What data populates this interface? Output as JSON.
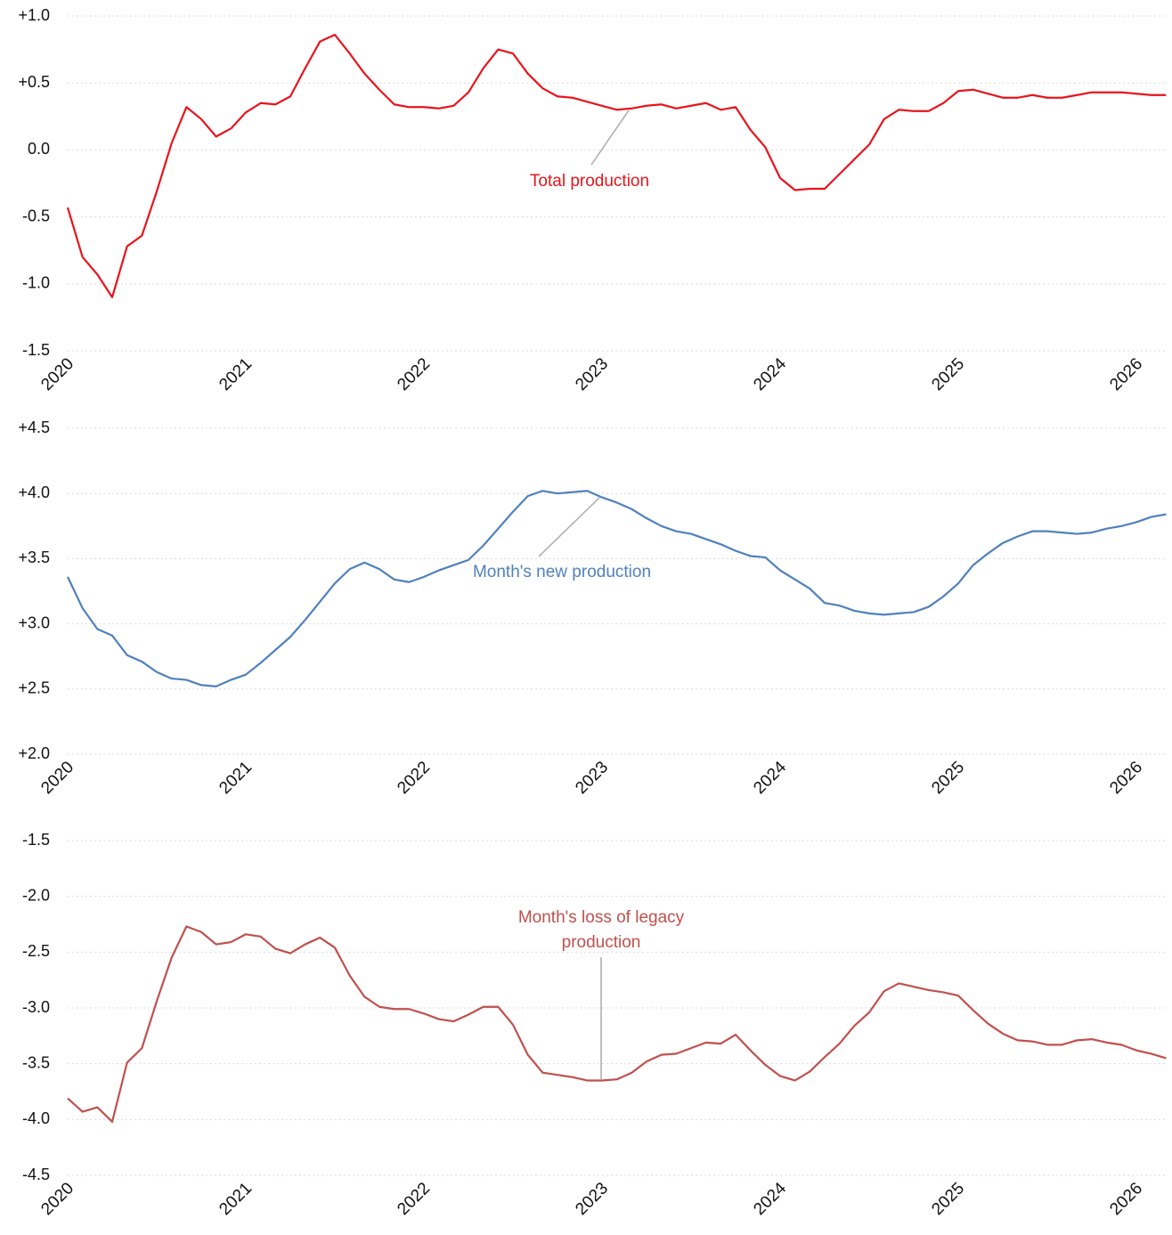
{
  "chart_data": [
    {
      "type": "line",
      "color": "#e8141c",
      "annotation": "Total production",
      "categories": [
        "2020",
        null,
        null,
        null,
        null,
        null,
        null,
        null,
        null,
        null,
        null,
        null,
        "2021",
        null,
        null,
        null,
        null,
        null,
        null,
        null,
        null,
        null,
        null,
        null,
        "2022",
        null,
        null,
        null,
        null,
        null,
        null,
        null,
        null,
        null,
        null,
        null,
        "2023",
        null,
        null,
        null,
        null,
        null,
        null,
        null,
        null,
        null,
        null,
        null,
        "2024",
        null,
        null,
        null,
        null,
        null,
        null,
        null,
        null,
        null,
        null,
        null,
        "2025",
        null,
        null,
        null,
        null,
        null,
        null,
        null,
        null,
        null,
        null,
        null,
        "2026",
        null,
        null
      ],
      "values": [
        -0.43,
        -0.8,
        -0.93,
        -1.1,
        -0.72,
        -0.64,
        -0.31,
        0.05,
        0.32,
        0.23,
        0.1,
        0.16,
        0.28,
        0.35,
        0.34,
        0.4,
        0.61,
        0.81,
        0.86,
        0.72,
        0.57,
        0.45,
        0.34,
        0.32,
        0.32,
        0.31,
        0.33,
        0.43,
        0.61,
        0.75,
        0.72,
        0.57,
        0.46,
        0.4,
        0.39,
        0.36,
        0.33,
        0.3,
        0.31,
        0.33,
        0.34,
        0.31,
        0.33,
        0.35,
        0.3,
        0.32,
        0.15,
        0.02,
        -0.21,
        -0.3,
        -0.29,
        -0.29,
        -0.18,
        -0.07,
        0.04,
        0.23,
        0.3,
        0.29,
        0.29,
        0.35,
        0.44,
        0.45,
        0.42,
        0.39,
        0.39,
        0.41,
        0.39,
        0.39,
        0.41,
        0.43,
        0.43,
        0.43,
        0.42,
        0.41,
        0.41
      ],
      "ylim": [
        -1.5,
        1.0
      ],
      "yticks": [
        -1.5,
        {
          "value": -1.0,
          "label": "-1.0"
        },
        -0.5,
        {
          "value": 0,
          "label": "0.0"
        },
        {
          "value": 0.5,
          "label": "+0.5"
        },
        {
          "value": 1.0,
          "label": "+1.0"
        }
      ],
      "grid": true
    },
    {
      "type": "line",
      "color": "#4f81bd",
      "annotation": "Month's new production",
      "categories": [
        "2020",
        null,
        null,
        null,
        null,
        null,
        null,
        null,
        null,
        null,
        null,
        null,
        "2021",
        null,
        null,
        null,
        null,
        null,
        null,
        null,
        null,
        null,
        null,
        null,
        "2022",
        null,
        null,
        null,
        null,
        null,
        null,
        null,
        null,
        null,
        null,
        null,
        "2023",
        null,
        null,
        null,
        null,
        null,
        null,
        null,
        null,
        null,
        null,
        null,
        "2024",
        null,
        null,
        null,
        null,
        null,
        null,
        null,
        null,
        null,
        null,
        null,
        "2025",
        null,
        null,
        null,
        null,
        null,
        null,
        null,
        null,
        null,
        null,
        null,
        "2026",
        null,
        null
      ],
      "values": [
        3.36,
        3.12,
        2.96,
        2.91,
        2.76,
        2.71,
        2.63,
        2.58,
        2.57,
        2.53,
        2.52,
        2.57,
        2.61,
        2.7,
        2.8,
        2.9,
        3.03,
        3.17,
        3.31,
        3.42,
        3.47,
        3.42,
        3.34,
        3.32,
        3.36,
        3.41,
        3.45,
        3.49,
        3.6,
        3.73,
        3.86,
        3.98,
        4.02,
        4.0,
        4.01,
        4.02,
        3.97,
        3.93,
        3.88,
        3.81,
        3.75,
        3.71,
        3.69,
        3.65,
        3.61,
        3.56,
        3.52,
        3.51,
        3.41,
        3.34,
        3.27,
        3.16,
        3.14,
        3.1,
        3.08,
        3.07,
        3.08,
        3.09,
        3.13,
        3.21,
        3.31,
        3.45,
        3.54,
        3.62,
        3.67,
        3.71,
        3.71,
        3.7,
        3.69,
        3.7,
        3.73,
        3.75,
        3.78,
        3.82,
        3.84
      ],
      "ylim": [
        2.0,
        4.5
      ],
      "yticks": [
        {
          "value": 2.0,
          "label": "+2.0"
        },
        {
          "value": 2.5,
          "label": "+2.5"
        },
        {
          "value": 3.0,
          "label": "+3.0"
        },
        {
          "value": 3.5,
          "label": "+3.5"
        },
        {
          "value": 4.0,
          "label": "+4.0"
        },
        {
          "value": 4.5,
          "label": "+4.5"
        }
      ],
      "grid": true
    },
    {
      "type": "line",
      "color": "#c0504d",
      "annotation": [
        "Month's loss of legacy",
        "production"
      ],
      "categories": [
        "2020",
        null,
        null,
        null,
        null,
        null,
        null,
        null,
        null,
        null,
        null,
        null,
        "2021",
        null,
        null,
        null,
        null,
        null,
        null,
        null,
        null,
        null,
        null,
        null,
        "2022",
        null,
        null,
        null,
        null,
        null,
        null,
        null,
        null,
        null,
        null,
        null,
        "2023",
        null,
        null,
        null,
        null,
        null,
        null,
        null,
        null,
        null,
        null,
        null,
        "2024",
        null,
        null,
        null,
        null,
        null,
        null,
        null,
        null,
        null,
        null,
        null,
        "2025",
        null,
        null,
        null,
        null,
        null,
        null,
        null,
        null,
        null,
        null,
        null,
        "2026",
        null,
        null
      ],
      "values": [
        -3.81,
        -3.93,
        -3.89,
        -4.02,
        -3.49,
        -3.36,
        -2.94,
        -2.55,
        -2.27,
        -2.32,
        -2.43,
        -2.41,
        -2.34,
        -2.36,
        -2.47,
        -2.51,
        -2.43,
        -2.37,
        -2.46,
        -2.71,
        -2.9,
        -2.99,
        -3.01,
        -3.01,
        -3.05,
        -3.1,
        -3.12,
        -3.06,
        -2.99,
        -2.99,
        -3.15,
        -3.42,
        -3.58,
        -3.6,
        -3.62,
        -3.65,
        -3.65,
        -3.64,
        -3.58,
        -3.48,
        -3.42,
        -3.41,
        -3.36,
        -3.31,
        -3.32,
        -3.24,
        -3.38,
        -3.51,
        -3.61,
        -3.65,
        -3.57,
        -3.44,
        -3.32,
        -3.16,
        -3.04,
        -2.85,
        -2.78,
        -2.81,
        -2.84,
        -2.86,
        -2.89,
        -3.02,
        -3.14,
        -3.23,
        -3.29,
        -3.3,
        -3.33,
        -3.33,
        -3.29,
        -3.28,
        -3.31,
        -3.33,
        -3.38,
        -3.41,
        -3.45
      ],
      "ylim": [
        -4.5,
        -1.5
      ],
      "yticks": [
        -4.5,
        {
          "value": -4.0,
          "label": "-4.0"
        },
        -3.5,
        {
          "value": -3.0,
          "label": "-3.0"
        },
        -2.5,
        {
          "value": -2.0,
          "label": "-2.0"
        },
        -1.5
      ],
      "grid": true
    }
  ]
}
